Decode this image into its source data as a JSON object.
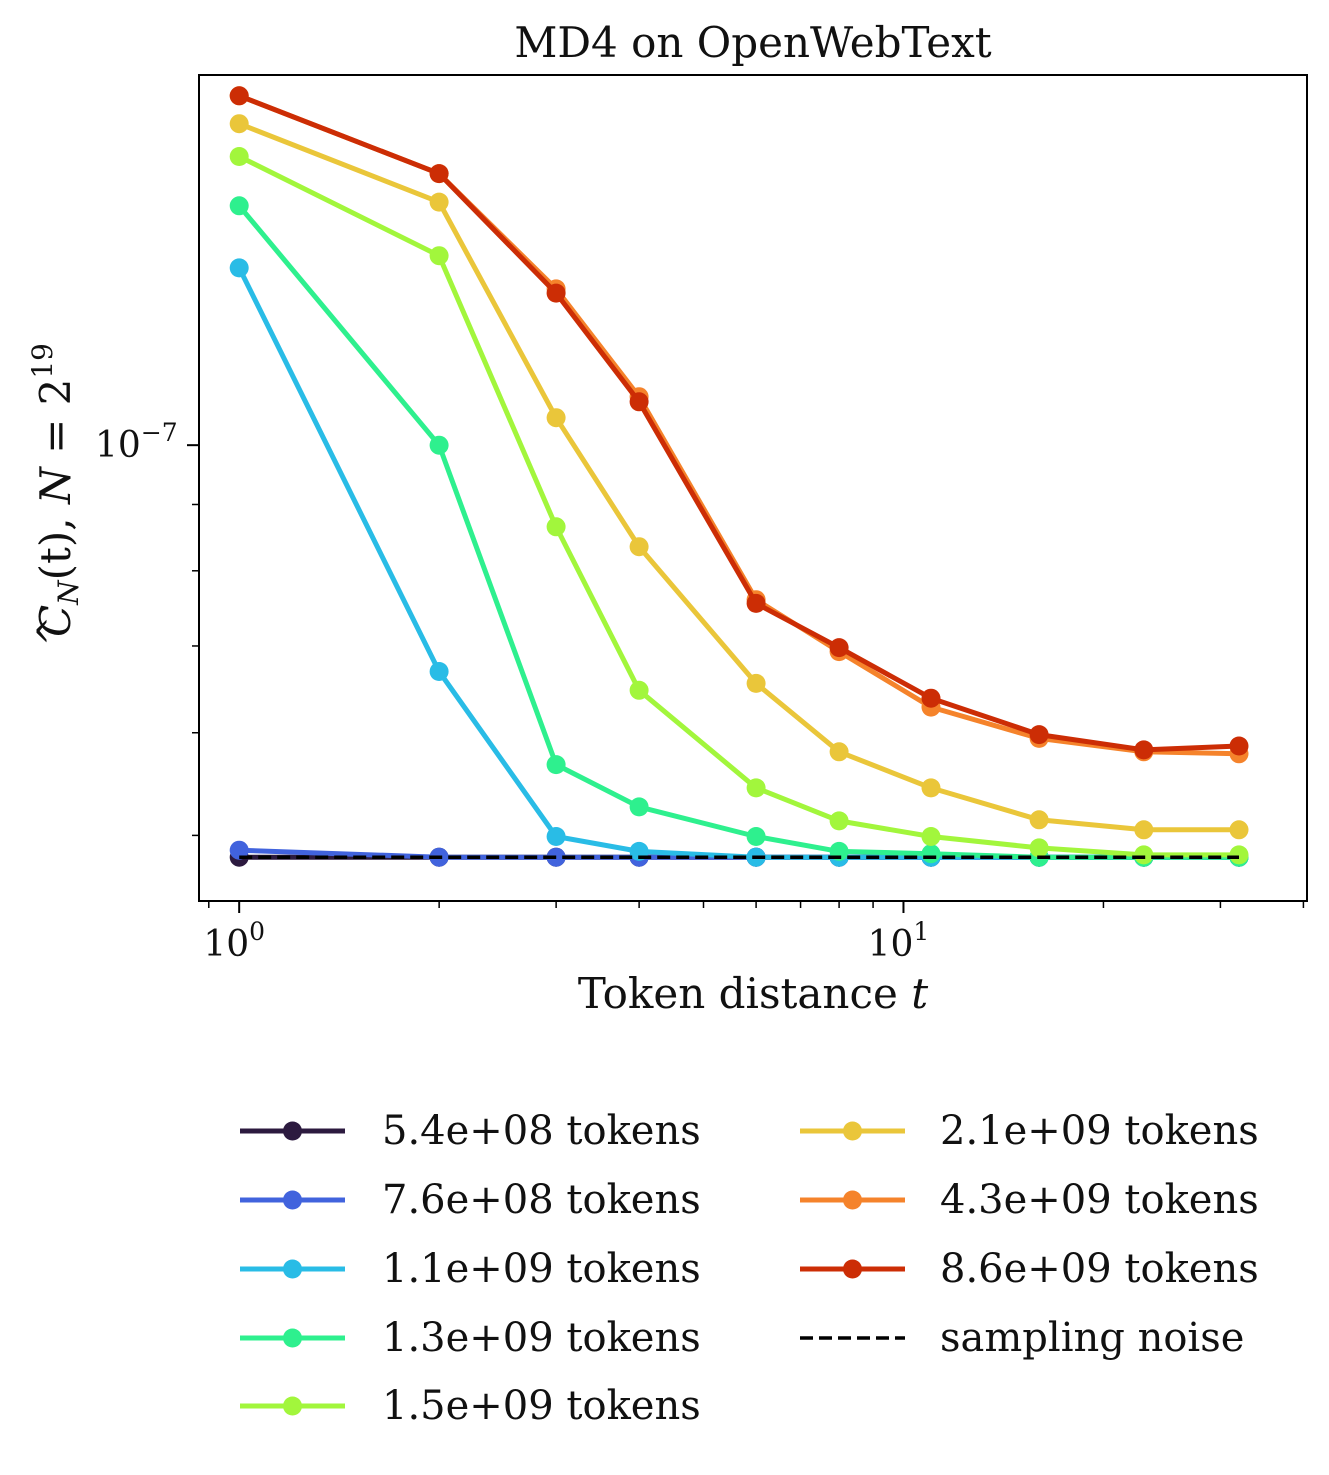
{
  "chart_data": {
    "type": "line",
    "title": "MD4 on OpenWebText",
    "xlabel_text": "Token distance ",
    "xlabel_var": "t",
    "ylabel": {
      "C": "C",
      "sub": "N",
      "arg": "(t), ",
      "N": "N",
      "eq": " = 2",
      "exp": "19"
    },
    "xscale": "log",
    "yscale": "log",
    "xlim": [
      0.87,
      40.5
    ],
    "ylim": [
      4.45e-08,
      1.93e-07
    ],
    "xticks": [
      {
        "value": 1,
        "base": "10",
        "exp": "0"
      },
      {
        "value": 10,
        "base": "10",
        "exp": "1"
      }
    ],
    "yticks": [
      {
        "value": 1e-07,
        "base": "10",
        "exp": "−7"
      }
    ],
    "x": [
      1,
      2,
      3,
      4,
      6,
      8,
      11,
      16,
      23,
      32
    ],
    "series": [
      {
        "name": "5.4e+08 tokens",
        "color": "#2c1a3f",
        "values": [
          4.81e-08,
          4.81e-08,
          4.81e-08,
          4.81e-08,
          4.81e-08,
          4.81e-08,
          4.81e-08,
          4.81e-08,
          4.81e-08,
          4.81e-08
        ]
      },
      {
        "name": "7.6e+08 tokens",
        "color": "#4163dd",
        "values": [
          4.87e-08,
          4.81e-08,
          4.81e-08,
          4.81e-08,
          4.81e-08,
          4.81e-08,
          4.81e-08,
          4.81e-08,
          4.81e-08,
          4.81e-08
        ]
      },
      {
        "name": "1.1e+09 tokens",
        "color": "#29bce6",
        "values": [
          1.37e-07,
          6.69e-08,
          4.99e-08,
          4.86e-08,
          4.81e-08,
          4.81e-08,
          4.81e-08,
          4.81e-08,
          4.81e-08,
          4.81e-08
        ]
      },
      {
        "name": "1.3e+09 tokens",
        "color": "#2ef08e",
        "values": [
          1.53e-07,
          1e-07,
          5.67e-08,
          5.26e-08,
          4.99e-08,
          4.86e-08,
          4.84e-08,
          4.81e-08,
          4.81e-08,
          4.81e-08
        ]
      },
      {
        "name": "1.5e+09 tokens",
        "color": "#a2f63c",
        "values": [
          1.67e-07,
          1.4e-07,
          8.65e-08,
          6.47e-08,
          5.44e-08,
          5.13e-08,
          4.99e-08,
          4.89e-08,
          4.83e-08,
          4.83e-08
        ]
      },
      {
        "name": "2.1e+09 tokens",
        "color": "#eac63a",
        "values": [
          1.77e-07,
          1.54e-07,
          1.05e-07,
          8.35e-08,
          6.55e-08,
          5.8e-08,
          5.44e-08,
          5.14e-08,
          5.05e-08,
          5.05e-08
        ]
      },
      {
        "name": "4.3e+09 tokens",
        "color": "#f5832b",
        "values": [
          1.86e-07,
          1.62e-07,
          1.32e-07,
          1.09e-07,
          7.6e-08,
          6.93e-08,
          6.28e-08,
          5.94e-08,
          5.8e-08,
          5.78e-08
        ]
      },
      {
        "name": "8.6e+09 tokens",
        "color": "#cc2d05",
        "values": [
          1.86e-07,
          1.62e-07,
          1.31e-07,
          1.08e-07,
          7.55e-08,
          6.98e-08,
          6.38e-08,
          5.98e-08,
          5.82e-08,
          5.86e-08
        ]
      }
    ],
    "noise": {
      "name": "sampling noise",
      "color": "#000000",
      "values": [
        4.81e-08,
        4.81e-08,
        4.81e-08,
        4.81e-08,
        4.81e-08,
        4.81e-08,
        4.81e-08,
        4.81e-08,
        4.81e-08,
        4.81e-08
      ]
    },
    "legend_position": "below",
    "grid": false
  }
}
